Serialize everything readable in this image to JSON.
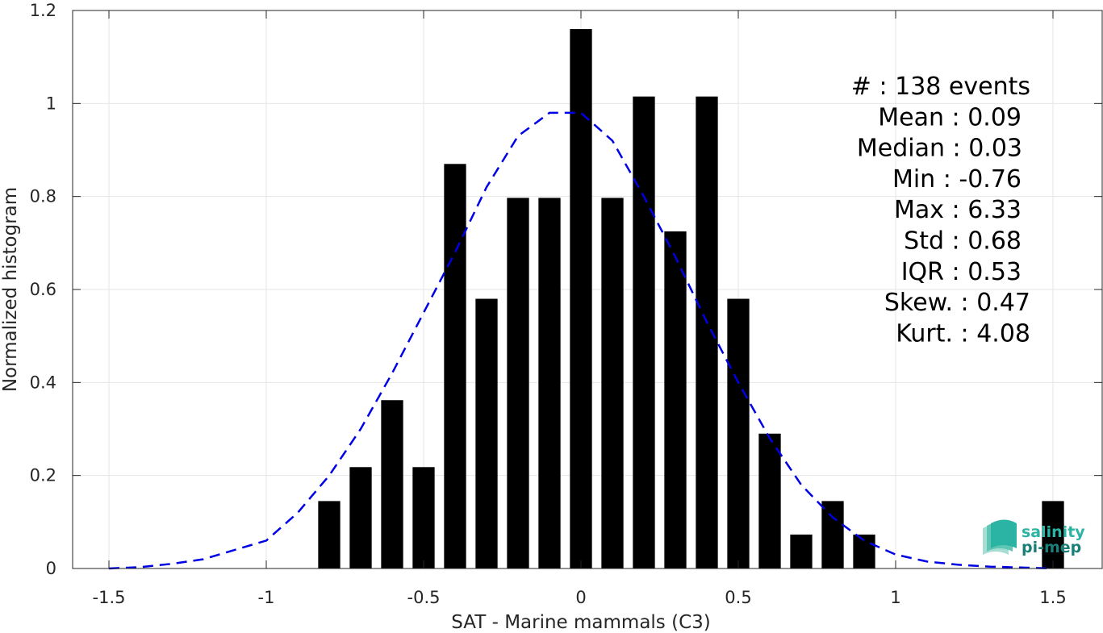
{
  "chart_data": {
    "type": "bar",
    "xlabel": "SAT - Marine mammals (C3)",
    "ylabel": "Normalized histogram",
    "xlim": [
      -1.6,
      1.6
    ],
    "ylim": [
      0,
      1.2
    ],
    "xticks": [
      -1.5,
      -1,
      -0.5,
      0,
      0.5,
      1,
      1.5
    ],
    "xtick_labels": [
      "-1.5",
      "-1",
      "-0.5",
      "0",
      "0.5",
      "1",
      "1.5"
    ],
    "yticks": [
      0,
      0.2,
      0.4,
      0.6,
      0.8,
      1,
      1.2
    ],
    "ytick_labels": [
      "0",
      "0.2",
      "0.4",
      "0.6",
      "0.8",
      "1",
      "1.2"
    ],
    "grid": true,
    "bar_color": "#000000",
    "bar_width": 0.07,
    "bars": {
      "x": [
        -0.8,
        -0.7,
        -0.6,
        -0.5,
        -0.4,
        -0.3,
        -0.2,
        -0.1,
        0.0,
        0.1,
        0.2,
        0.3,
        0.4,
        0.5,
        0.6,
        0.7,
        0.8,
        0.9,
        1.5
      ],
      "values": [
        0.145,
        0.218,
        0.362,
        0.218,
        0.87,
        0.58,
        0.797,
        0.797,
        1.16,
        0.797,
        1.015,
        0.725,
        1.015,
        0.58,
        0.29,
        0.073,
        0.145,
        0.073,
        0.145
      ]
    },
    "fit_curve": {
      "style": "dashed",
      "color": "#0000e6",
      "x": [
        -1.5,
        -1.4,
        -1.3,
        -1.2,
        -1.1,
        -1.0,
        -0.9,
        -0.8,
        -0.7,
        -0.6,
        -0.5,
        -0.4,
        -0.3,
        -0.2,
        -0.1,
        0.0,
        0.1,
        0.2,
        0.3,
        0.4,
        0.5,
        0.6,
        0.7,
        0.8,
        0.9,
        1.0,
        1.1,
        1.2,
        1.3,
        1.4,
        1.5
      ],
      "y": [
        0.0,
        0.003,
        0.01,
        0.02,
        0.04,
        0.06,
        0.12,
        0.2,
        0.3,
        0.42,
        0.55,
        0.68,
        0.82,
        0.93,
        0.98,
        0.98,
        0.92,
        0.8,
        0.67,
        0.53,
        0.4,
        0.28,
        0.18,
        0.11,
        0.06,
        0.03,
        0.015,
        0.008,
        0.004,
        0.002,
        0.0
      ]
    }
  },
  "stats": [
    {
      "key": "#",
      "sep": " : ",
      "value": "138 events"
    },
    {
      "key": "Mean",
      "sep": " : ",
      "value": "0.09"
    },
    {
      "key": "Median",
      "sep": " : ",
      "value": "0.03"
    },
    {
      "key": "Min",
      "sep": " : ",
      "value": "-0.76"
    },
    {
      "key": "Max",
      "sep": " : ",
      "value": "6.33"
    },
    {
      "key": "Std",
      "sep": " : ",
      "value": "0.68"
    },
    {
      "key": "IQR",
      "sep": " : ",
      "value": "0.53"
    },
    {
      "key": "Skew.",
      "sep": " : ",
      "value": "0.47"
    },
    {
      "key": "Kurt.",
      "sep": " : ",
      "value": "4.08"
    }
  ],
  "logo": {
    "line1": "salinity",
    "line2": "pi-mep",
    "color_light": "#2bb3a3",
    "color_dark": "#1a7f78"
  }
}
